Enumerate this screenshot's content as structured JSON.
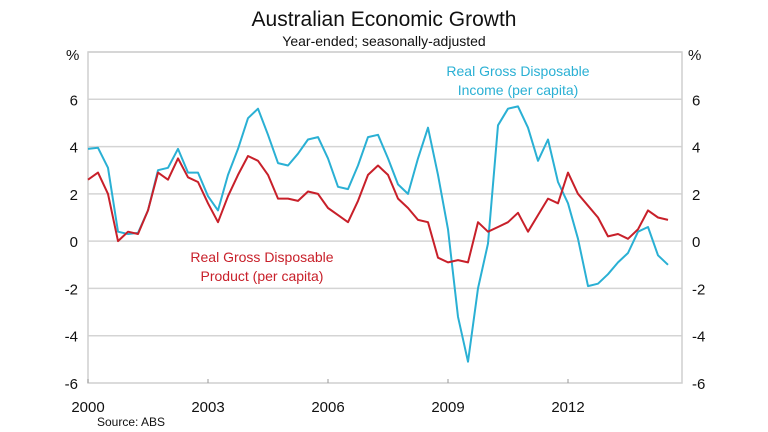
{
  "chart_data": {
    "type": "line",
    "title": "Australian Economic Growth",
    "subtitle": "Year-ended; seasonally-adjusted",
    "ylabel_left": "%",
    "ylabel_right": "%",
    "source": "Source: ABS",
    "ylim": [
      -6,
      8
    ],
    "yticks": [
      -6,
      -4,
      -2,
      0,
      2,
      4,
      6
    ],
    "xlim": [
      2000,
      2014.85
    ],
    "xticks": [
      2000,
      2003,
      2006,
      2009,
      2012
    ],
    "grid": true,
    "x_start": 2000,
    "x_step": 0.25,
    "series": [
      {
        "name": "Real Gross Disposable Income (per capita)",
        "label_lines": [
          "Real Gross Disposable",
          "Income (per capita)"
        ],
        "color": "#2ab0d4",
        "values": [
          3.9,
          3.95,
          3.1,
          0.4,
          0.3,
          0.35,
          1.3,
          3.0,
          3.1,
          3.9,
          2.9,
          2.9,
          1.9,
          1.3,
          2.8,
          3.9,
          5.2,
          5.6,
          4.5,
          3.3,
          3.2,
          3.7,
          4.3,
          4.4,
          3.5,
          2.3,
          2.2,
          3.2,
          4.4,
          4.5,
          3.5,
          2.4,
          2.0,
          3.5,
          4.8,
          2.8,
          0.5,
          -3.2,
          -5.1,
          -2.0,
          -0.1,
          4.9,
          5.6,
          5.7,
          4.8,
          3.4,
          4.3,
          2.5,
          1.6,
          0.1,
          -1.9,
          -1.8,
          -1.4,
          -0.9,
          -0.5,
          0.4,
          0.6,
          -0.6,
          -1.0
        ]
      },
      {
        "name": "Real Gross Disposable Product (per capita)",
        "label_lines": [
          "Real Gross Disposable",
          "Product (per capita)"
        ],
        "color": "#c8202a",
        "values": [
          2.6,
          2.9,
          2.0,
          0.0,
          0.4,
          0.3,
          1.3,
          2.9,
          2.6,
          3.5,
          2.7,
          2.5,
          1.6,
          0.8,
          1.9,
          2.8,
          3.6,
          3.4,
          2.8,
          1.8,
          1.8,
          1.7,
          2.1,
          2.0,
          1.4,
          1.1,
          0.8,
          1.7,
          2.8,
          3.2,
          2.8,
          1.8,
          1.4,
          0.9,
          0.8,
          -0.7,
          -0.9,
          -0.8,
          -0.9,
          0.8,
          0.4,
          0.6,
          0.8,
          1.2,
          0.4,
          1.1,
          1.8,
          1.6,
          2.9,
          2.0,
          1.5,
          1.0,
          0.2,
          0.3,
          0.1,
          0.5,
          1.3,
          1.0,
          0.9
        ]
      }
    ]
  }
}
